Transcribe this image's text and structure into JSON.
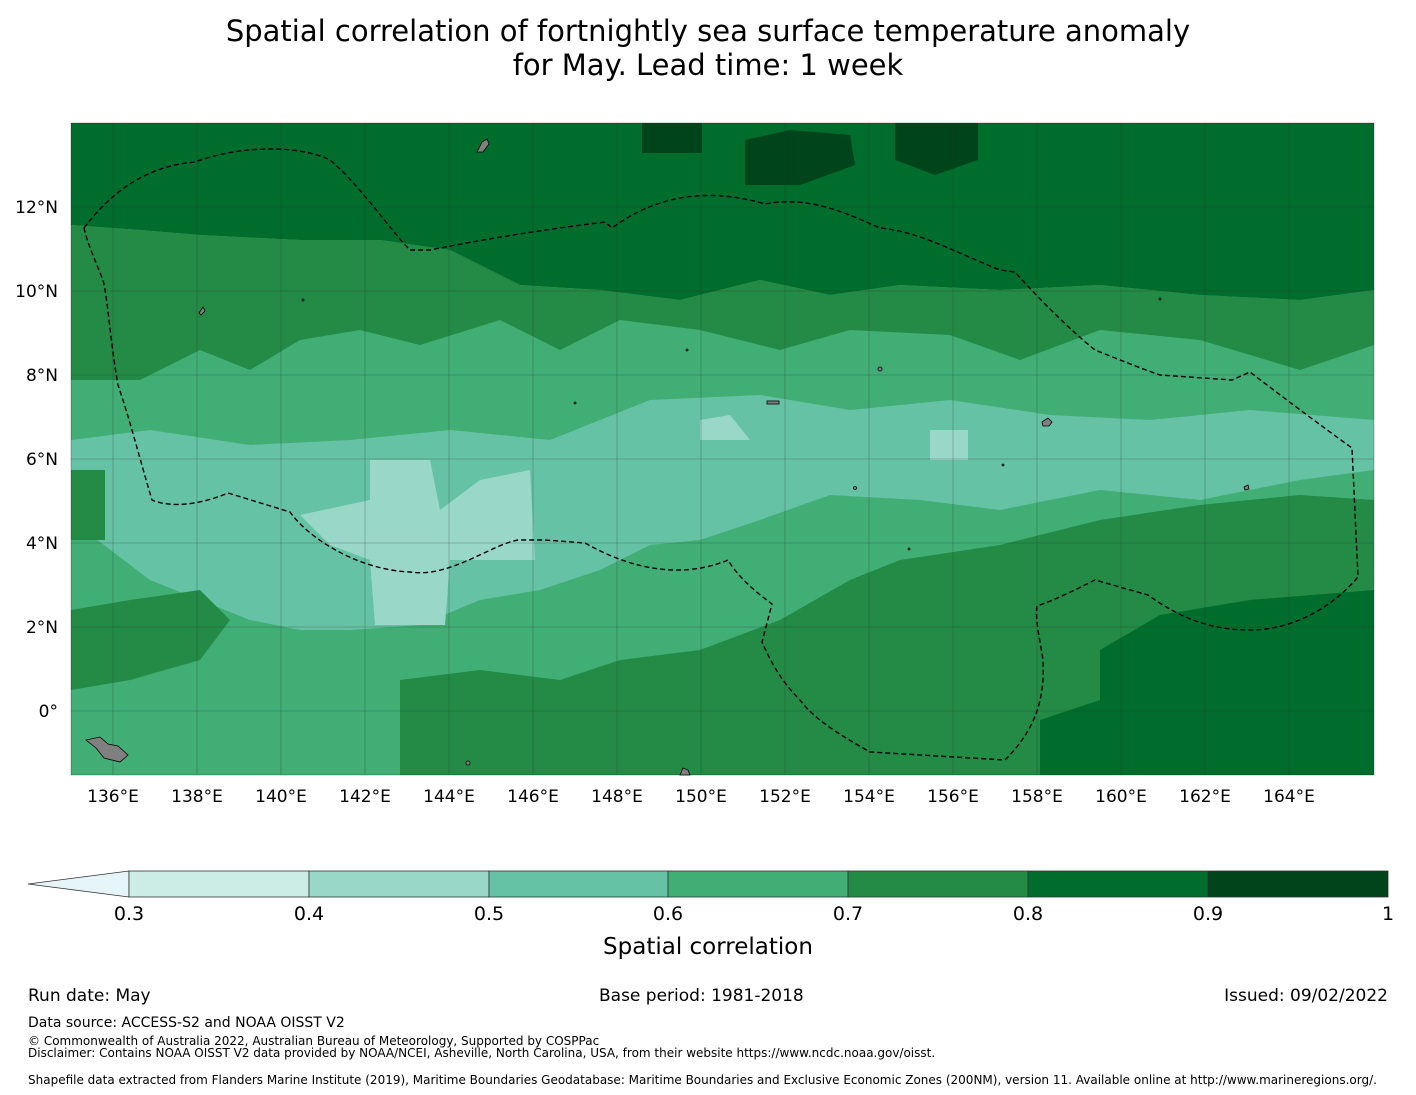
{
  "title": {
    "line1": "Spatial correlation of fortnightly sea surface temperature anomaly",
    "line2": "for May. Lead time: 1 week"
  },
  "map": {
    "lon_range": [
      135,
      166
    ],
    "lat_range": [
      -1.5,
      14
    ],
    "x_ticks": [
      "136°E",
      "138°E",
      "140°E",
      "142°E",
      "144°E",
      "146°E",
      "148°E",
      "150°E",
      "152°E",
      "154°E",
      "156°E",
      "158°E",
      "160°E",
      "162°E",
      "164°E"
    ],
    "y_ticks": [
      "12°N",
      "10°N",
      "8°N",
      "6°N",
      "4°N",
      "2°N",
      "0°"
    ],
    "land_color": "#808080",
    "boundary_style": "dashed black line (EEZ)"
  },
  "colorbar": {
    "title": "Spatial correlation",
    "ticks": [
      "0.3",
      "0.4",
      "0.5",
      "0.6",
      "0.7",
      "0.8",
      "0.9",
      "1"
    ],
    "under_color": "#e5f5f9",
    "colors": [
      "#ccece6",
      "#99d8c9",
      "#66c2a4",
      "#41ae76",
      "#238b45",
      "#006d2c",
      "#00441b"
    ]
  },
  "footer": {
    "run_date": "Run date: May",
    "base_period": "Base period: 1981-2018",
    "issued": "Issued: 09/02/2022",
    "data_source": "Data source: ACCESS-S2 and NOAA OISST V2",
    "copyright": "© Commonwealth of Australia 2022, Australian Bureau of Meteorology, Supported by COSPPac",
    "disclaimer": "Disclaimer: Contains NOAA OISST V2 data provided by NOAA/NCEI, Asheville, North Carolina, USA, from their website https://www.ncdc.noaa.gov/oisst.",
    "shapefile": "Shapefile data extracted from Flanders Marine Institute (2019), Maritime Boundaries Geodatabase: Maritime Boundaries and Exclusive Economic Zones (200NM), version 11. Available online at http://www.marineregions.org/."
  }
}
